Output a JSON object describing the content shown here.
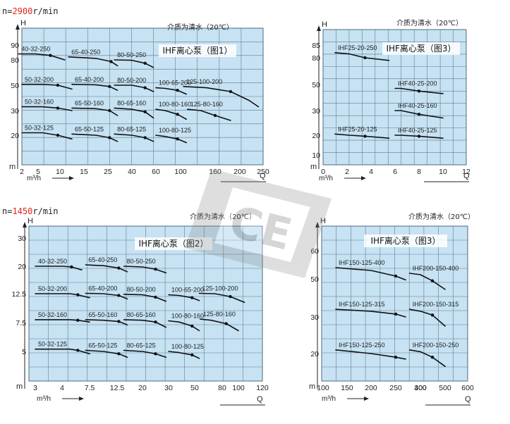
{
  "headers": [
    {
      "prefix": "n=",
      "value": "2900",
      "suffix": "r/min"
    },
    {
      "prefix": "n=",
      "value": "1450",
      "suffix": "r/min"
    }
  ],
  "colors": {
    "grid_bg": "#c6e2f3",
    "grid_line": "#4f6a80",
    "curve": "#111111",
    "accent": "#e0241b"
  },
  "watermark": "CE",
  "chart_data": [
    {
      "type": "line",
      "title": "IHF离心泵（图1）",
      "medium": "介质为清水（20℃）",
      "ylabel": "H",
      "yunit": "m",
      "xlabel": "Q",
      "xunit": "m³/h",
      "scale": "log",
      "x_ticks": [
        "2",
        "5",
        "10",
        "15",
        "25",
        "40",
        "60",
        "100",
        "160",
        "200",
        "250"
      ],
      "y_ticks": [
        "90",
        "80",
        "50",
        "30",
        "20"
      ],
      "series": [
        {
          "name": "40-32-250",
          "points": [
            [
              1.4,
              84
            ],
            [
              4.5,
              84
            ],
            [
              7.8,
              83
            ],
            [
              11,
              80
            ]
          ]
        },
        {
          "name": "65-40-250",
          "points": [
            [
              11.8,
              82
            ],
            [
              20,
              81
            ],
            [
              27,
              78
            ],
            [
              31,
              73
            ]
          ]
        },
        {
          "name": "80-50-250",
          "points": [
            [
              29,
              80
            ],
            [
              40,
              79.5
            ],
            [
              51,
              76
            ],
            [
              58,
              71
            ]
          ]
        },
        {
          "name": "50-32-200",
          "points": [
            [
              2,
              51
            ],
            [
              6,
              51
            ],
            [
              9.5,
              50
            ],
            [
              12.5,
              47
            ]
          ]
        },
        {
          "name": "65-40-200",
          "points": [
            [
              12.5,
              51
            ],
            [
              20,
              50.5
            ],
            [
              26,
              49
            ],
            [
              31,
              46
            ]
          ]
        },
        {
          "name": "80-50-200",
          "points": [
            [
              29,
              50
            ],
            [
              40,
              50
            ],
            [
              51,
              48
            ],
            [
              58,
              45
            ]
          ]
        },
        {
          "name": "100-65-200",
          "points": [
            [
              60,
              48
            ],
            [
              75,
              47.5
            ],
            [
              95,
              46
            ],
            [
              110,
              43
            ]
          ]
        },
        {
          "name": "125-100-200",
          "points": [
            [
              105,
              49
            ],
            [
              145,
              48
            ],
            [
              185,
              45
            ],
            [
              220,
              38
            ],
            [
              240,
              33
            ]
          ]
        },
        {
          "name": "50-32-160",
          "points": [
            [
              2,
              33
            ],
            [
              6,
              33
            ],
            [
              9.5,
              32
            ],
            [
              12.5,
              30
            ]
          ]
        },
        {
          "name": "65-50-160",
          "points": [
            [
              12.5,
              32
            ],
            [
              20,
              31.5
            ],
            [
              26,
              30
            ],
            [
              31,
              28
            ]
          ]
        },
        {
          "name": "80-65-160",
          "points": [
            [
              29,
              32
            ],
            [
              40,
              31
            ],
            [
              51,
              29.5
            ],
            [
              58,
              27
            ]
          ]
        },
        {
          "name": "100-80-160",
          "points": [
            [
              60,
              31
            ],
            [
              75,
              30
            ],
            [
              95,
              28.5
            ],
            [
              110,
              26.5
            ]
          ]
        },
        {
          "name": "125-80-160",
          "points": [
            [
              112,
              31
            ],
            [
              135,
              30
            ],
            [
              160,
              28
            ],
            [
              185,
              26
            ]
          ]
        },
        {
          "name": "50-32-125",
          "points": [
            [
              2,
              21
            ],
            [
              6,
              21
            ],
            [
              9.5,
              20
            ],
            [
              12.5,
              18.5
            ]
          ]
        },
        {
          "name": "65-50-125",
          "points": [
            [
              12.5,
              20.5
            ],
            [
              20,
              20
            ],
            [
              26,
              19
            ],
            [
              31,
              17.5
            ]
          ]
        },
        {
          "name": "80-65-125",
          "points": [
            [
              29,
              20.5
            ],
            [
              40,
              20
            ],
            [
              51,
              19
            ],
            [
              58,
              17.5
            ]
          ]
        },
        {
          "name": "100-80-125",
          "points": [
            [
              60,
              20
            ],
            [
              75,
              19.5
            ],
            [
              95,
              18.5
            ],
            [
              110,
              17
            ]
          ]
        }
      ]
    },
    {
      "type": "line",
      "title": "IHF离心泵（图3）",
      "medium": "介质为清水（20℃）",
      "ylabel": "H",
      "yunit": "m",
      "xlabel": "Q",
      "xunit": "m³/h",
      "scale": "log",
      "x_ticks": [
        "0",
        "2",
        "4",
        "6",
        "8",
        "10",
        "12"
      ],
      "y_ticks": [
        "85",
        "80",
        "50",
        "30",
        "20",
        "10"
      ],
      "series": [
        {
          "name": "IHF25-20-250",
          "points": [
            [
              1,
              82
            ],
            [
              2.2,
              81.5
            ],
            [
              3.5,
              80
            ],
            [
              5.5,
              77
            ]
          ]
        },
        {
          "name": "IHF40-25-200",
          "points": [
            [
              6,
              47
            ],
            [
              6.5,
              47
            ],
            [
              8,
              45
            ],
            [
              10,
              43
            ]
          ]
        },
        {
          "name": "IHF40-25-160",
          "points": [
            [
              6,
              30
            ],
            [
              6.5,
              30
            ],
            [
              8,
              28.5
            ],
            [
              10,
              27
            ]
          ]
        },
        {
          "name": "IHF25-20-125",
          "points": [
            [
              1,
              20.5
            ],
            [
              2.2,
              20
            ],
            [
              3.5,
              19.5
            ],
            [
              5.5,
              18.5
            ]
          ]
        },
        {
          "name": "IHF40-25-125",
          "points": [
            [
              6,
              20
            ],
            [
              6.5,
              20
            ],
            [
              8,
              19.5
            ],
            [
              10,
              18.5
            ]
          ]
        }
      ]
    },
    {
      "type": "line",
      "title": "IHF离心泵（图2）",
      "medium": "介质为清水（20℃）",
      "ylabel": "H",
      "yunit": "m",
      "xlabel": "Q",
      "xunit": "m³/h",
      "scale": "log",
      "x_ticks": [
        "3",
        "4",
        "7.5",
        "12.5",
        "20",
        "30",
        "50",
        "80",
        "100",
        "120"
      ],
      "y_ticks": [
        "30",
        "20",
        "12.5",
        "7.5",
        "5"
      ],
      "series": [
        {
          "name": "40-32-250",
          "points": [
            [
              3,
              20
            ],
            [
              4,
              20
            ],
            [
              5.2,
              19.8
            ],
            [
              6.5,
              19
            ]
          ]
        },
        {
          "name": "65-40-250",
          "points": [
            [
              7,
              20.5
            ],
            [
              10,
              20.2
            ],
            [
              13,
              19.5
            ],
            [
              15.5,
              18.5
            ]
          ]
        },
        {
          "name": "80-50-250",
          "points": [
            [
              14.5,
              20
            ],
            [
              20,
              19.8
            ],
            [
              25,
              19.2
            ],
            [
              29,
              18.2
            ]
          ]
        },
        {
          "name": "50-32-200",
          "points": [
            [
              3,
              12.5
            ],
            [
              5,
              12.5
            ],
            [
              6,
              12.3
            ],
            [
              7.5,
              11.8
            ]
          ]
        },
        {
          "name": "65-40-200",
          "points": [
            [
              7,
              12.6
            ],
            [
              10,
              12.5
            ],
            [
              13,
              12.2
            ],
            [
              15.5,
              11.6
            ]
          ]
        },
        {
          "name": "80-50-200",
          "points": [
            [
              14.5,
              12.4
            ],
            [
              20,
              12.3
            ],
            [
              25,
              11.9
            ],
            [
              29,
              11.2
            ]
          ]
        },
        {
          "name": "100-65-200",
          "points": [
            [
              30,
              12.3
            ],
            [
              38,
              12.2
            ],
            [
              48,
              11.8
            ],
            [
              55,
              11.3
            ]
          ]
        },
        {
          "name": "125-100-200",
          "points": [
            [
              55,
              12.6
            ],
            [
              72,
              12.5
            ],
            [
              90,
              12
            ],
            [
              105,
              11
            ]
          ]
        },
        {
          "name": "50-32-160",
          "points": [
            [
              3,
              8
            ],
            [
              5,
              8
            ],
            [
              6,
              7.9
            ],
            [
              7.5,
              7.6
            ]
          ]
        },
        {
          "name": "65-50-160",
          "points": [
            [
              7,
              8
            ],
            [
              10,
              7.9
            ],
            [
              13,
              7.7
            ],
            [
              15.5,
              7.3
            ]
          ]
        },
        {
          "name": "80-65-160",
          "points": [
            [
              14.5,
              8
            ],
            [
              20,
              7.9
            ],
            [
              25,
              7.6
            ],
            [
              29,
              7.1
            ]
          ]
        },
        {
          "name": "100-80-160",
          "points": [
            [
              30,
              7.8
            ],
            [
              38,
              7.6
            ],
            [
              48,
              7.2
            ],
            [
              55,
              6.8
            ]
          ]
        },
        {
          "name": "125-80-160",
          "points": [
            [
              56,
              8.1
            ],
            [
              68,
              7.9
            ],
            [
              85,
              7.4
            ],
            [
              100,
              6.8
            ]
          ]
        },
        {
          "name": "50-32-125",
          "points": [
            [
              3,
              5.2
            ],
            [
              5,
              5.2
            ],
            [
              6,
              5.1
            ],
            [
              7.5,
              4.8
            ]
          ]
        },
        {
          "name": "65-50-125",
          "points": [
            [
              7,
              5.1
            ],
            [
              10,
              5
            ],
            [
              13,
              4.8
            ],
            [
              15.5,
              4.5
            ]
          ]
        },
        {
          "name": "80-65-125",
          "points": [
            [
              14.5,
              5.1
            ],
            [
              20,
              5
            ],
            [
              25,
              4.8
            ],
            [
              29,
              4.5
            ]
          ]
        },
        {
          "name": "100-80-125",
          "points": [
            [
              30,
              5
            ],
            [
              38,
              4.9
            ],
            [
              48,
              4.7
            ],
            [
              55,
              4.4
            ]
          ]
        }
      ]
    },
    {
      "type": "line",
      "title": "IHF离心泵（图3）",
      "medium": "介质为清水（20℃）",
      "ylabel": "H",
      "yunit": "m",
      "xlabel": "Q",
      "xunit": "m³/h",
      "scale": "linear",
      "x_ticks": [
        "100",
        "150",
        "200",
        "250",
        "300",
        "400",
        "500",
        "600"
      ],
      "y_ticks": [
        "60",
        "50",
        "30",
        "20"
      ],
      "series": [
        {
          "name": "IHF150-125-400",
          "points": [
            [
              130,
              54
            ],
            [
              200,
              53
            ],
            [
              250,
              51
            ],
            [
              270,
              49.5
            ]
          ]
        },
        {
          "name": "IHF200-150-400",
          "points": [
            [
              310,
              52
            ],
            [
              400,
              51.5
            ],
            [
              450,
              49
            ],
            [
              500,
              44.5
            ]
          ]
        },
        {
          "name": "IHF150-125-315",
          "points": [
            [
              130,
              34
            ],
            [
              200,
              33
            ],
            [
              250,
              31.5
            ],
            [
              270,
              30
            ]
          ]
        },
        {
          "name": "IHF200-150-315",
          "points": [
            [
              310,
              34
            ],
            [
              400,
              33
            ],
            [
              450,
              31
            ],
            [
              500,
              27.5
            ]
          ]
        },
        {
          "name": "IHF150-125-250",
          "points": [
            [
              130,
              21
            ],
            [
              200,
              20
            ],
            [
              250,
              19
            ],
            [
              270,
              18.5
            ]
          ]
        },
        {
          "name": "IHF200-150-250",
          "points": [
            [
              310,
              21
            ],
            [
              400,
              20.5
            ],
            [
              450,
              19
            ],
            [
              500,
              16.5
            ]
          ]
        }
      ]
    }
  ]
}
